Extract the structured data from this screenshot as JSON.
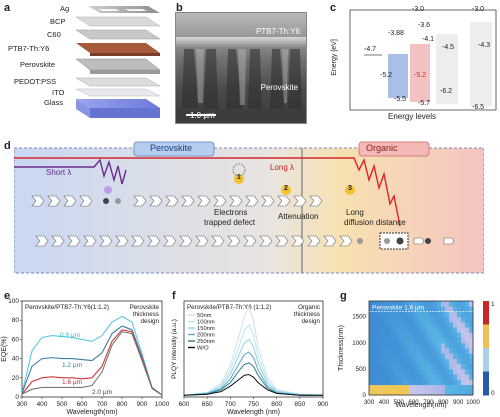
{
  "panels": {
    "a": {
      "label": "a",
      "layers": [
        "Ag",
        "BCP",
        "C60",
        "PTB7-Th:Y6",
        "Perovskite",
        "PEDOT:PSS",
        "ITO",
        "Glass"
      ]
    },
    "b": {
      "label": "b",
      "top_text": "PTB7-Th:Y6",
      "mid_text": "Perovskite",
      "scale_text": "1.0 μm"
    },
    "c": {
      "label": "c",
      "ylabel": "Energy [eV]",
      "xlabel": "Energy levels",
      "values": [
        "-3.0",
        "-4.7",
        "-3.88",
        "-5.2",
        "-5.5",
        "-3.6",
        "-4.1",
        "-5.2",
        "-5.7",
        "-4.5",
        "-6.2",
        "-3.0",
        "-4.3",
        "-6.5"
      ]
    },
    "d": {
      "label": "d",
      "perovskite": "Perovskite",
      "organic": "Organic",
      "short": "Short λ",
      "long": "Long λ",
      "n1": "1",
      "n2": "2",
      "n3": "3",
      "t1a": "Electrons",
      "t1b": "trapped defect",
      "t2": "Attenuation",
      "t3a": "Long",
      "t3b": "diffusion distance"
    },
    "e": {
      "label": "e",
      "legend": "Perovskite/PTB7-Th:Y6(1:1.2)",
      "design": [
        "Perovskite",
        "thickness",
        "design"
      ],
      "ylabel": "EQE(%)",
      "xlabel": "Wavelength(nm)",
      "xticks": [
        "300",
        "400",
        "500",
        "600",
        "700",
        "800",
        "900",
        "1000"
      ],
      "yticks": [
        "0",
        "20",
        "40",
        "60",
        "80",
        "100"
      ],
      "curve_labels": [
        "0.8 μm",
        "1.2 μm",
        "1.6 μm",
        "2.0 μm"
      ]
    },
    "f": {
      "label": "f",
      "legend": "Perovskite/PTB7-Th:Y6 (1:1.2)",
      "design": [
        "Organic",
        "thickness",
        "design"
      ],
      "ylabel": "PLQY intensity (a.u.)",
      "xlabel": "Wavelength (nm)",
      "xticks": [
        "600",
        "650",
        "700",
        "750",
        "800",
        "850",
        "900"
      ],
      "series": [
        "50nm",
        "100nm",
        "150nm",
        "200nm",
        "250nm",
        "W/O"
      ]
    },
    "g": {
      "label": "g",
      "ylabel": "Thickness(nm)",
      "xlabel": "Wavelength(nm)",
      "annotation": "Perovskite 1.6 μm",
      "xticks": [
        "300",
        "400",
        "500",
        "600",
        "700",
        "800",
        "900",
        "1000"
      ],
      "yticks": [
        "0",
        "500",
        "1000",
        "1500"
      ],
      "cbar_ticks": [
        "1",
        "0"
      ]
    }
  },
  "chart_data": [
    {
      "type": "line",
      "title": "",
      "xlabel": "Wavelength(nm)",
      "ylabel": "EQE(%)",
      "xlim": [
        300,
        1000
      ],
      "ylim": [
        0,
        100
      ],
      "x": [
        300,
        350,
        400,
        450,
        500,
        550,
        600,
        650,
        700,
        750,
        800,
        850,
        900,
        950,
        1000
      ],
      "series": [
        {
          "name": "0.8 μm",
          "color": "#5bc8e6",
          "values": [
            4,
            48,
            62,
            64,
            63,
            62,
            60,
            58,
            64,
            78,
            84,
            78,
            45,
            10,
            2
          ]
        },
        {
          "name": "1.2 μm",
          "color": "#3a7fa0",
          "values": [
            4,
            32,
            40,
            41,
            40,
            40,
            39,
            38,
            46,
            66,
            74,
            70,
            42,
            10,
            2
          ]
        },
        {
          "name": "1.6 μm",
          "color": "#d0383a",
          "values": [
            3,
            16,
            20,
            21,
            20,
            20,
            19,
            20,
            32,
            58,
            70,
            68,
            40,
            9,
            2
          ]
        },
        {
          "name": "2.0 μm",
          "color": "#777777",
          "values": [
            3,
            8,
            10,
            10,
            10,
            10,
            10,
            12,
            26,
            54,
            68,
            66,
            38,
            9,
            2
          ]
        }
      ]
    },
    {
      "type": "line",
      "title": "",
      "xlabel": "Wavelength (nm)",
      "ylabel": "PLQY intensity (a.u.)",
      "xlim": [
        600,
        900
      ],
      "x": [
        600,
        650,
        680,
        700,
        720,
        730,
        740,
        750,
        760,
        780,
        800,
        850,
        900
      ],
      "series": [
        {
          "name": "50nm",
          "color": "#d4dde8",
          "values": [
            0.02,
            0.05,
            0.15,
            0.35,
            0.7,
            0.9,
            1.0,
            0.85,
            0.55,
            0.22,
            0.08,
            0.03,
            0.02
          ]
        },
        {
          "name": "100nm",
          "color": "#b7e6f2",
          "values": [
            0.02,
            0.05,
            0.13,
            0.3,
            0.58,
            0.74,
            0.8,
            0.7,
            0.45,
            0.18,
            0.07,
            0.03,
            0.02
          ]
        },
        {
          "name": "150nm",
          "color": "#8fd2e3",
          "values": [
            0.02,
            0.04,
            0.11,
            0.25,
            0.48,
            0.6,
            0.64,
            0.56,
            0.38,
            0.15,
            0.06,
            0.03,
            0.02
          ]
        },
        {
          "name": "200nm",
          "color": "#5aa9c0",
          "values": [
            0.02,
            0.04,
            0.09,
            0.2,
            0.38,
            0.47,
            0.5,
            0.44,
            0.3,
            0.12,
            0.05,
            0.02,
            0.02
          ]
        },
        {
          "name": "250nm",
          "color": "#2f7b91",
          "values": [
            0.02,
            0.03,
            0.08,
            0.16,
            0.3,
            0.36,
            0.38,
            0.34,
            0.24,
            0.1,
            0.04,
            0.02,
            0.02
          ]
        },
        {
          "name": "W/O",
          "color": "#111111",
          "values": [
            0.02,
            0.03,
            0.06,
            0.12,
            0.2,
            0.24,
            0.25,
            0.22,
            0.16,
            0.08,
            0.04,
            0.02,
            0.02
          ]
        }
      ]
    },
    {
      "type": "heatmap",
      "xlabel": "Wavelength(nm)",
      "ylabel": "Thickness(nm)",
      "xlim": [
        300,
        1000
      ],
      "ylim": [
        0,
        1800
      ],
      "colorbar": [
        0,
        1
      ]
    }
  ]
}
